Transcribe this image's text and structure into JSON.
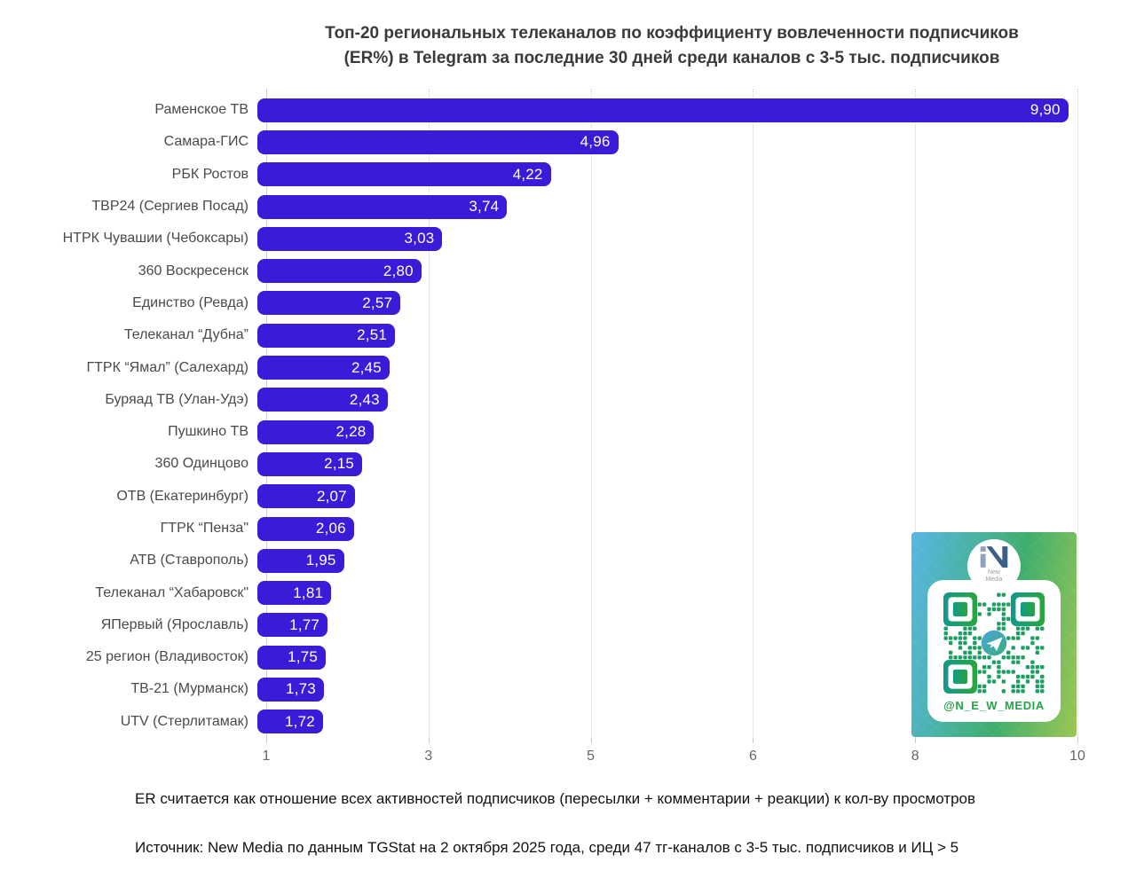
{
  "title": {
    "line1": "Топ-20 региональных телеканалов по коэффициенту вовлеченности подписчиков",
    "line2": "(ER%) в Telegram за последние 30 дней среди каналов с 3-5 тыс. подписчиков"
  },
  "chart_data": {
    "type": "bar",
    "orientation": "horizontal",
    "title": "Топ-20 региональных телеканалов по коэффициенту вовлеченности подписчиков (ER%) в Telegram за последние 30 дней среди каналов с 3-5 тыс. подписчиков",
    "xlabel": "",
    "ylabel": "",
    "xlim": [
      1,
      10
    ],
    "x_ticks": [
      "1",
      "3",
      "5",
      "6",
      "8",
      "10"
    ],
    "grid": "vertical dotted gridlines, evenly spaced",
    "legend": "none",
    "bar_color": "#3a1bd8",
    "value_format": "comma decimal, inside bar right-aligned, white",
    "categories": [
      "Раменское ТВ",
      "Самара-ГИС",
      "РБК Ростов",
      "ТВР24 (Сергиев Посад)",
      "НТРК Чувашии (Чебоксары)",
      "360 Воскресенск",
      "Единство (Ревда)",
      "Телеканал “Дубна”",
      "ГТРК “Ямал” (Салехард)",
      "Буряад ТВ (Улан-Удэ)",
      "Пушкино ТВ",
      "360 Одинцово",
      "ОТВ (Екатеринбург)",
      "ГТРК “Пенза\"",
      "АТВ (Ставрополь)",
      "Телеканал “Хабаровск\"",
      "ЯПервый (Ярославль)",
      "25 регион (Владивосток)",
      "ТВ-21 (Мурманск)",
      "UTV (Стерлитамак)"
    ],
    "values": [
      9.9,
      4.96,
      4.22,
      3.74,
      3.03,
      2.8,
      2.57,
      2.51,
      2.45,
      2.43,
      2.28,
      2.15,
      2.07,
      2.06,
      1.95,
      1.81,
      1.77,
      1.75,
      1.73,
      1.72
    ],
    "value_labels": [
      "9,90",
      "4,96",
      "4,22",
      "3,74",
      "3,03",
      "2,80",
      "2,57",
      "2,51",
      "2,45",
      "2,43",
      "2,28",
      "2,15",
      "2,07",
      "2,06",
      "1,95",
      "1,81",
      "1,77",
      "1,75",
      "1,73",
      "1,72"
    ]
  },
  "footnotes": {
    "methodology": "ER считается как отношение всех активностей подписчиков (пересылки + комментарии + реакции) к кол-ву просмотров",
    "source": "Источник: New Media по данным TGStat на 2 октября 2025 года, среди 47 тг-каналов с 3-5 тыс. подписчиков и ИЦ > 5"
  },
  "qr_card": {
    "handle": "@N_E_W_MEDIA",
    "logo_line1": "New",
    "logo_line2": "Media",
    "qr_color_start": "#12998a",
    "qr_color_end": "#2aa53e",
    "background_gradient": [
      "#58b6e3",
      "#3fae6d",
      "#9cc653"
    ]
  }
}
